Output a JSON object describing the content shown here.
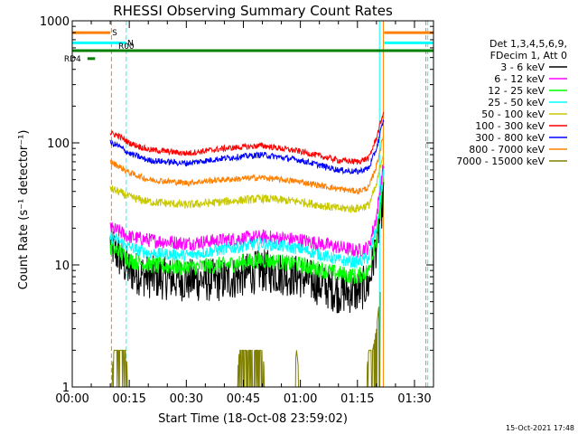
{
  "chart_data": {
    "type": "line",
    "title": "RHESSI Observing Summary Count Rates",
    "xlabel": "Start Time (18-Oct-08 23:59:02)",
    "ylabel": "Count Rate (s⁻¹ detector⁻¹)",
    "yscale": "log",
    "xlim_minutes": [
      0,
      95
    ],
    "ylim": [
      1,
      1000
    ],
    "x_ticks": [
      {
        "minutes": 0,
        "label": "00:00"
      },
      {
        "minutes": 15,
        "label": "00:15"
      },
      {
        "minutes": 30,
        "label": "00:30"
      },
      {
        "minutes": 45,
        "label": "00:45"
      },
      {
        "minutes": 60,
        "label": "01:00"
      },
      {
        "minutes": 75,
        "label": "01:15"
      },
      {
        "minutes": 90,
        "label": "01:30"
      }
    ],
    "y_ticks": [
      {
        "value": 1,
        "label": "1"
      },
      {
        "value": 10,
        "label": "10"
      },
      {
        "value": 100,
        "label": "100"
      },
      {
        "value": 1000,
        "label": "1000"
      }
    ],
    "legend_header": [
      "Det 1,3,4,5,6,9,",
      "FDecim 1, Att 0"
    ],
    "legend_position": "right",
    "series": [
      {
        "name": "3 - 6 keV",
        "color": "#000000",
        "x": [
          10,
          12,
          15,
          20,
          30,
          40,
          50,
          60,
          70,
          75,
          78,
          80,
          82
        ],
        "y": [
          15,
          12,
          9,
          8,
          7.5,
          7.5,
          9,
          8,
          6,
          6,
          7,
          15,
          40
        ]
      },
      {
        "name": "6 - 12 keV",
        "color": "#ff00ff",
        "x": [
          10,
          12,
          15,
          20,
          30,
          40,
          50,
          60,
          70,
          75,
          78,
          80,
          82
        ],
        "y": [
          20,
          19,
          17,
          16,
          15,
          16,
          17,
          16,
          14,
          13,
          14,
          25,
          70
        ]
      },
      {
        "name": "12 - 25 keV",
        "color": "#00ff00",
        "x": [
          10,
          12,
          15,
          20,
          30,
          40,
          50,
          60,
          70,
          75,
          78,
          80,
          82
        ],
        "y": [
          14,
          13,
          11,
          10,
          9.5,
          10,
          11,
          10,
          8.5,
          8,
          9,
          17,
          50
        ]
      },
      {
        "name": "25 - 50 keV",
        "color": "#00ffff",
        "x": [
          10,
          12,
          15,
          20,
          30,
          40,
          50,
          60,
          70,
          75,
          78,
          80,
          82
        ],
        "y": [
          17,
          16,
          14,
          12.5,
          12,
          13.5,
          15,
          13.5,
          11,
          10.5,
          11.5,
          20,
          60
        ]
      },
      {
        "name": "50 - 100 keV",
        "color": "#c8c800",
        "x": [
          10,
          12,
          15,
          20,
          30,
          40,
          50,
          60,
          70,
          75,
          78,
          80,
          82
        ],
        "y": [
          42,
          40,
          36,
          33,
          31,
          33,
          35,
          33,
          29,
          29,
          31,
          45,
          90
        ]
      },
      {
        "name": "100 - 300 keV",
        "color": "#ff0000",
        "x": [
          10,
          12,
          15,
          20,
          30,
          40,
          50,
          60,
          70,
          75,
          78,
          80,
          82
        ],
        "y": [
          120,
          115,
          100,
          88,
          82,
          90,
          95,
          85,
          72,
          70,
          75,
          110,
          185
        ]
      },
      {
        "name": "300 - 800 keV",
        "color": "#0000ff",
        "x": [
          10,
          12,
          15,
          20,
          30,
          40,
          50,
          60,
          70,
          75,
          78,
          80,
          82
        ],
        "y": [
          100,
          95,
          82,
          72,
          68,
          75,
          80,
          72,
          60,
          58,
          62,
          90,
          160
        ]
      },
      {
        "name": "800 - 7000 keV",
        "color": "#ff8000",
        "x": [
          10,
          12,
          15,
          20,
          30,
          40,
          50,
          60,
          70,
          75,
          78,
          80,
          82
        ],
        "y": [
          70,
          65,
          57,
          50,
          47,
          50,
          52,
          48,
          42,
          40,
          43,
          65,
          120
        ]
      },
      {
        "name": "7000 - 15000 keV",
        "color": "#808000",
        "x": [
          10,
          11,
          12,
          13,
          14,
          15,
          43,
          44,
          50,
          51,
          58,
          59,
          60,
          76,
          77,
          78,
          79,
          80,
          81
        ],
        "y": [
          1,
          2,
          2,
          2,
          2,
          1,
          1,
          2,
          2,
          1,
          1,
          2,
          1,
          1,
          1,
          2,
          2,
          3,
          6
        ]
      }
    ],
    "flag_bars": [
      {
        "label": "S",
        "color": "#ff8000",
        "segments": [
          [
            0,
            10
          ],
          [
            82,
            95
          ]
        ],
        "level_value": 800
      },
      {
        "label": "N",
        "color": "#00ffff",
        "segments": [
          [
            0,
            14
          ],
          [
            82,
            95
          ]
        ],
        "level_value": 660
      },
      {
        "label": "R00",
        "color": "#008000",
        "segments": [
          [
            0,
            95
          ]
        ],
        "level_value": 570
      },
      {
        "label": "RD4",
        "color": "#008000",
        "segments": [
          [
            4,
            6
          ]
        ],
        "level_value": 490
      }
    ],
    "vertical_markers": [
      {
        "minutes": 0,
        "color": "#00ffff",
        "style": "solid"
      },
      {
        "minutes": 10.3,
        "color": "#ff8000",
        "style": "dashed"
      },
      {
        "minutes": 14.2,
        "color": "#00ffff",
        "style": "dashed"
      },
      {
        "minutes": 80.8,
        "color": "#00ffff",
        "style": "solid"
      },
      {
        "minutes": 81.8,
        "color": "#ff8000",
        "style": "solid"
      },
      {
        "minutes": 93,
        "color": "#ff8000",
        "style": "dashed"
      },
      {
        "minutes": 93.5,
        "color": "#00ffff",
        "style": "dashed"
      }
    ]
  },
  "footer": {
    "timestamp": "15-Oct-2021 17:48"
  }
}
